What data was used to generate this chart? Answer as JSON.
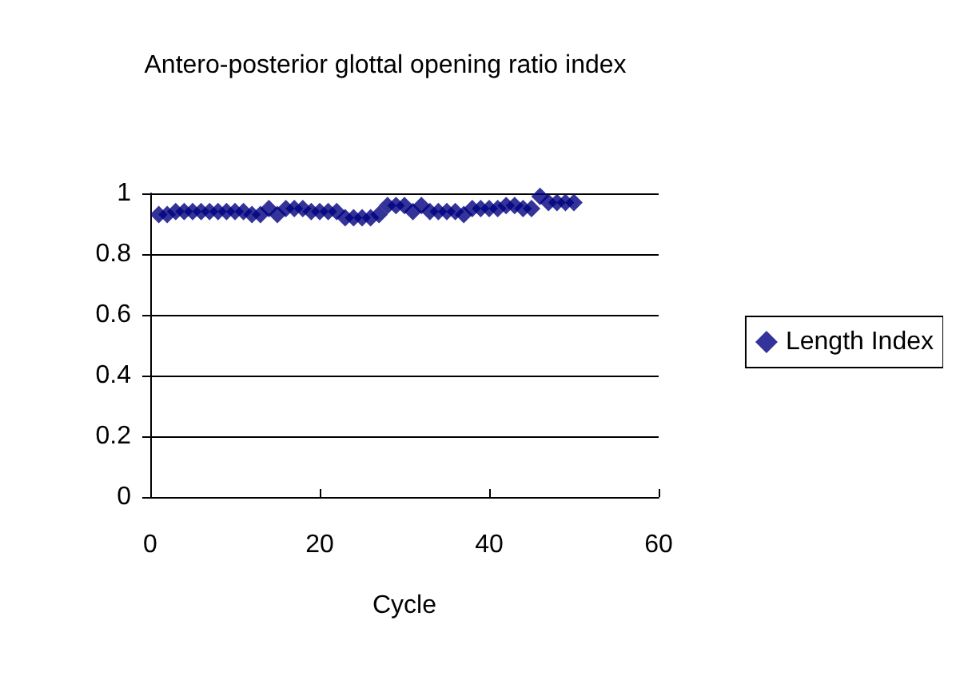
{
  "chart_data": {
    "type": "scatter",
    "title": "Antero-posterior glottal opening ratio index",
    "xlabel": "Cycle",
    "x": [
      1,
      2,
      3,
      4,
      5,
      6,
      7,
      8,
      9,
      10,
      11,
      12,
      13,
      14,
      15,
      16,
      17,
      18,
      19,
      20,
      21,
      22,
      23,
      24,
      25,
      26,
      27,
      28,
      29,
      30,
      31,
      32,
      33,
      34,
      35,
      36,
      37,
      38,
      39,
      40,
      41,
      42,
      43,
      44,
      45,
      46,
      47,
      48,
      49,
      50
    ],
    "series": [
      {
        "name": "Length Index",
        "color": "#000080",
        "values": [
          0.93,
          0.93,
          0.94,
          0.94,
          0.94,
          0.94,
          0.94,
          0.94,
          0.94,
          0.94,
          0.94,
          0.93,
          0.93,
          0.95,
          0.93,
          0.95,
          0.95,
          0.95,
          0.94,
          0.94,
          0.94,
          0.94,
          0.92,
          0.92,
          0.92,
          0.92,
          0.93,
          0.96,
          0.96,
          0.96,
          0.94,
          0.96,
          0.94,
          0.94,
          0.94,
          0.94,
          0.93,
          0.95,
          0.95,
          0.95,
          0.95,
          0.96,
          0.96,
          0.95,
          0.95,
          0.99,
          0.97,
          0.97,
          0.97,
          0.97
        ]
      }
    ],
    "xlim": [
      0,
      60
    ],
    "xticks": [
      0,
      20,
      40,
      60
    ],
    "ylim": [
      0,
      1
    ],
    "yticks": [
      0,
      0.2,
      0.4,
      0.6,
      0.8,
      1
    ],
    "grid": "y",
    "legend": "right",
    "marker": "diamond"
  }
}
